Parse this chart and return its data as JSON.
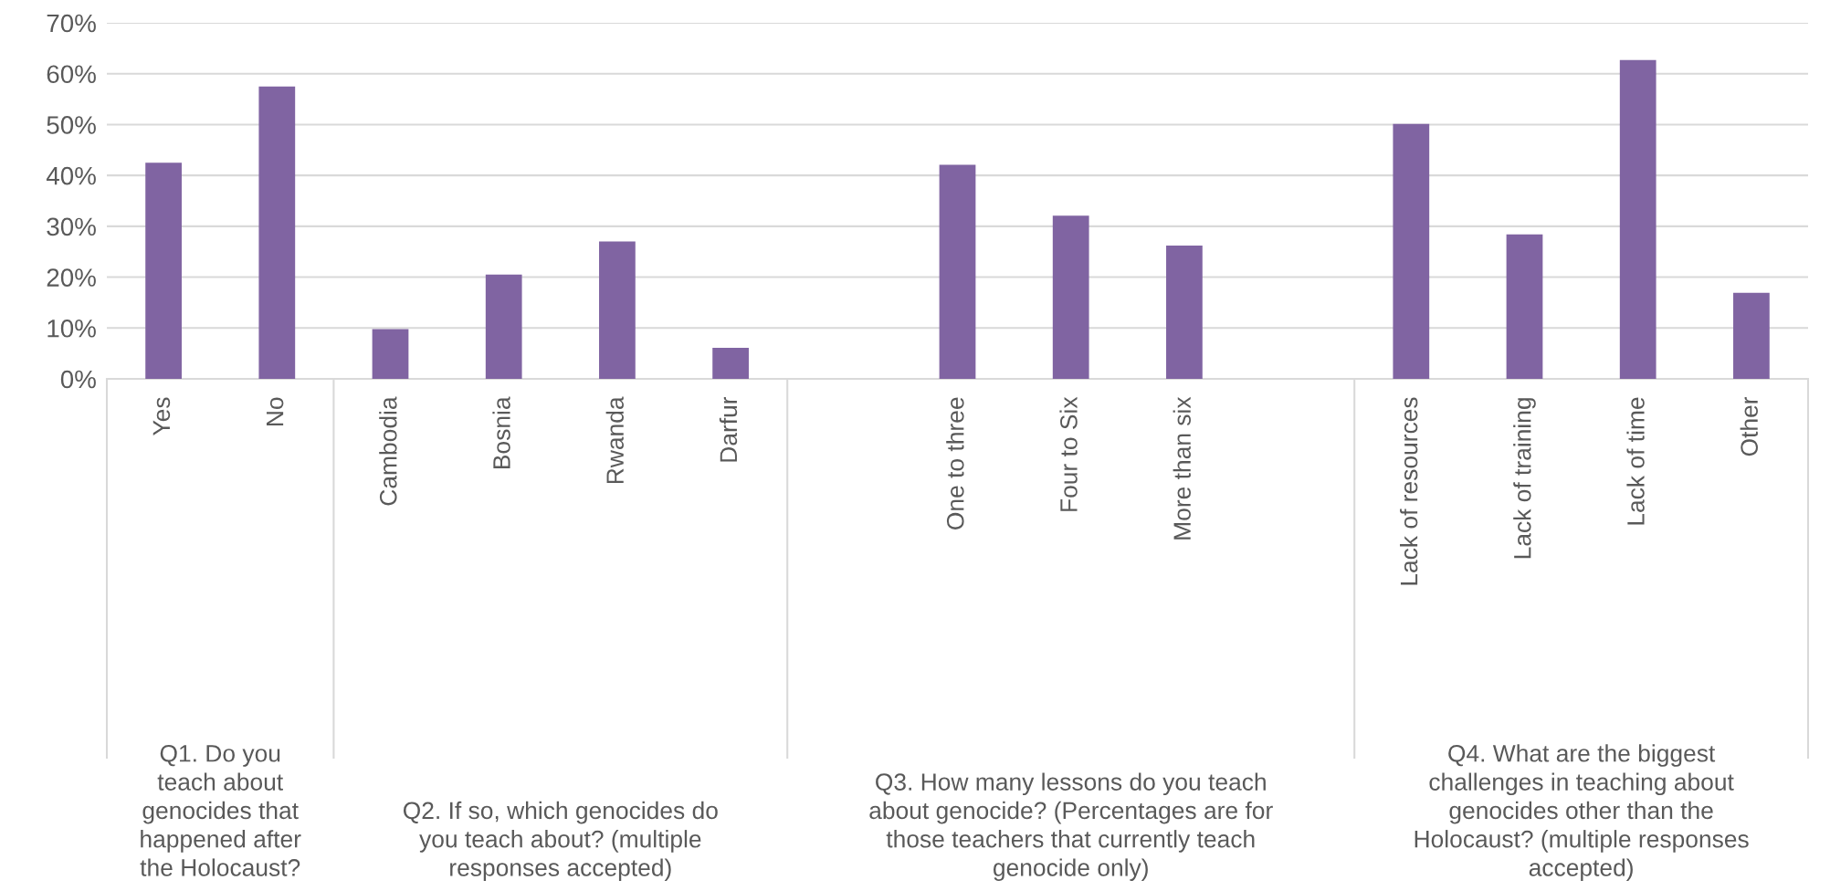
{
  "chart_data": {
    "type": "bar",
    "color": "#8064a2",
    "categories": [
      "Yes",
      "No",
      "Cambodia",
      "Bosnia",
      "Rwanda",
      "Darfur",
      null,
      "One to three",
      "Four to Six",
      "More than six",
      null,
      "Lack of resources",
      "Lack of training",
      "Lack of time",
      "Other"
    ],
    "values": [
      42.5,
      57.5,
      9.8,
      20.5,
      27.0,
      6.1,
      null,
      42.1,
      32.1,
      26.2,
      null,
      50.1,
      28.4,
      62.7,
      16.9
    ],
    "ylim": [
      0,
      70
    ],
    "yticks": [
      {
        "value": 0,
        "label": "0%"
      },
      {
        "value": 10,
        "label": "10%"
      },
      {
        "value": 20,
        "label": "20%"
      },
      {
        "value": 30,
        "label": "30%"
      },
      {
        "value": 40,
        "label": "40%"
      },
      {
        "value": 50,
        "label": "50%"
      },
      {
        "value": 60,
        "label": "60%"
      },
      {
        "value": 70,
        "label": "70%"
      }
    ],
    "grid": "y",
    "annotations": [
      "Q1. Do you\nteach about\ngenocides that\nhappened after\nthe Holocaust?",
      "Q2. If so, which genocides do\nyou teach about? (multiple\nresponses accepted)",
      "Q3. How many lessons do you teach\nabout genocide? (Percentages are for\nthose teachers that currently teach\ngenocide only)",
      "Q4. What are the biggest\nchallenges in teaching about\ngenocides other than the\nHolocaust? (multiple responses\naccepted)"
    ]
  }
}
